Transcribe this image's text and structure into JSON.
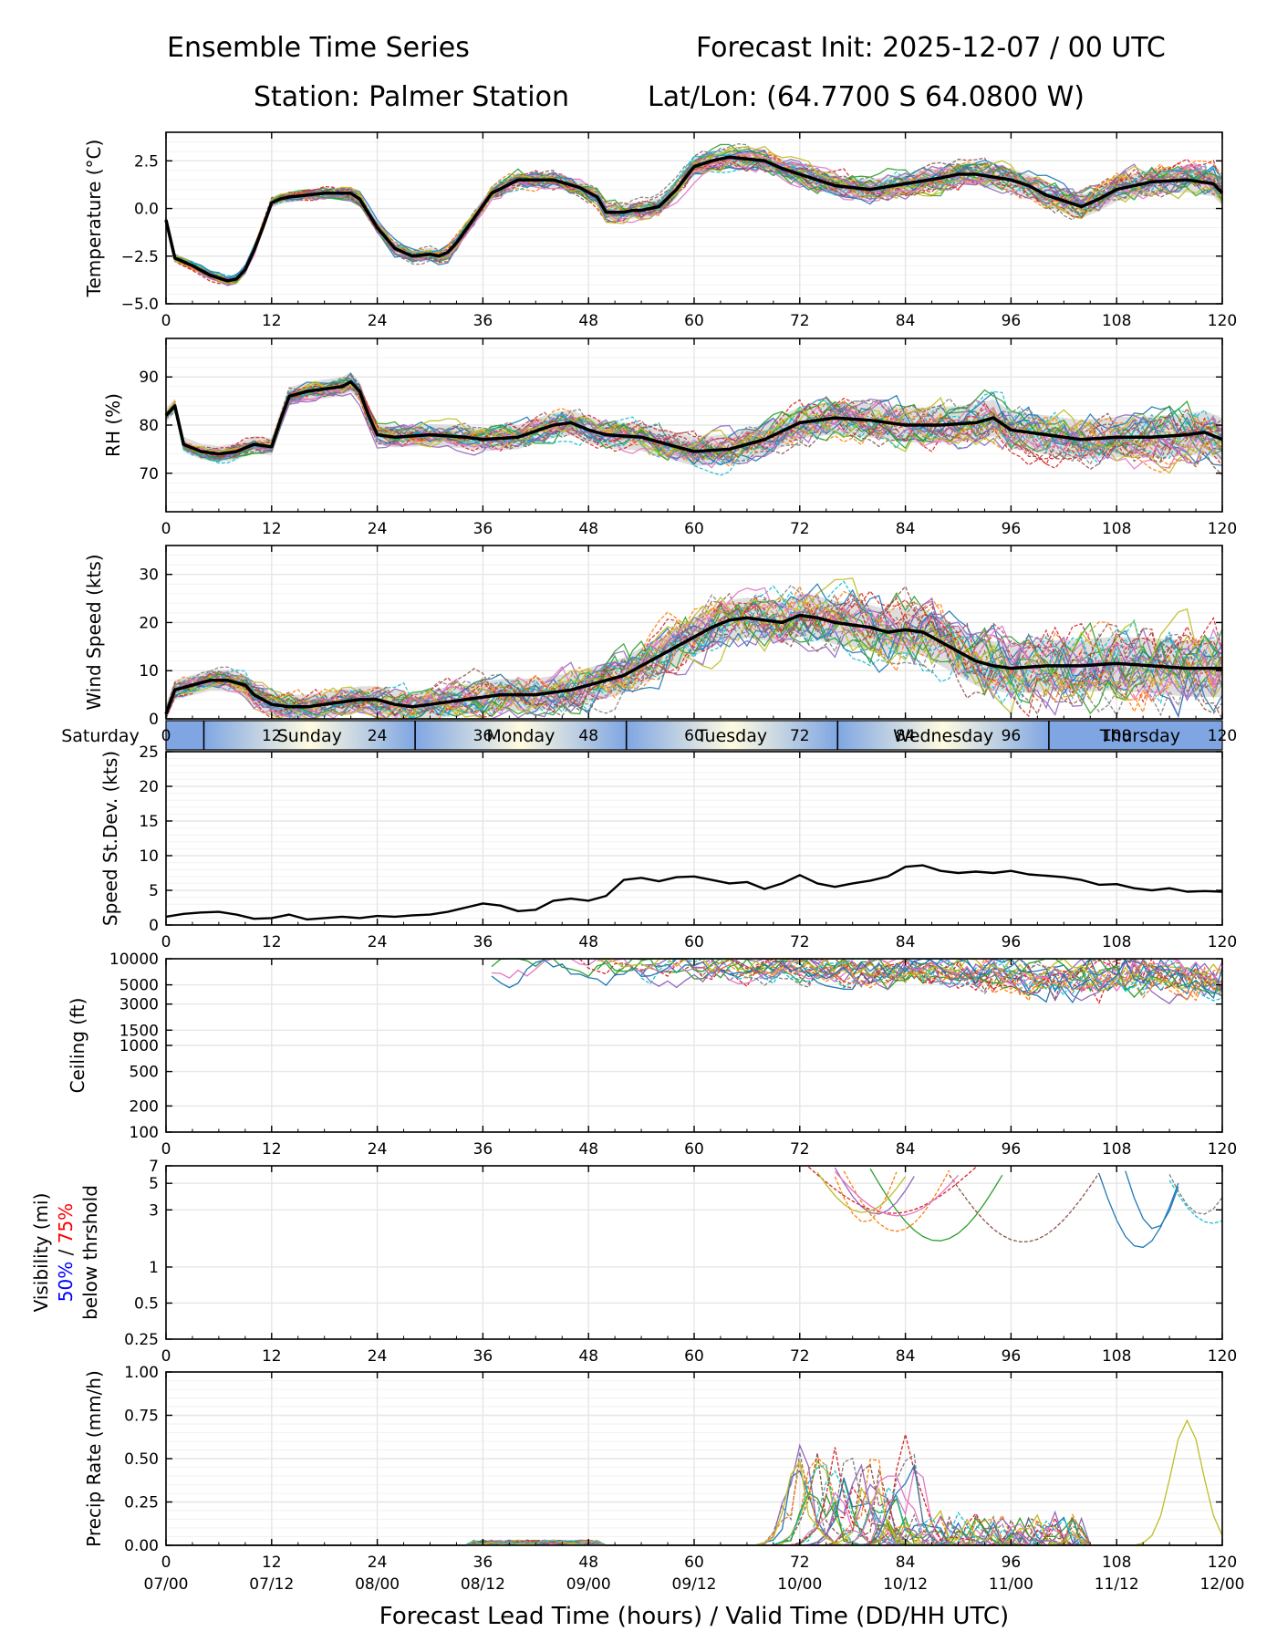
{
  "header": {
    "title_left": "Ensemble Time Series",
    "title_right": "Forecast Init: 2025-12-07 / 00 UTC",
    "station": "Station: Palmer Station",
    "latlon": "Lat/Lon: (64.7700 S 64.0800 W)"
  },
  "x_axis": {
    "xlabel": "Forecast Lead Time (hours) / Valid Time (DD/HH UTC)",
    "xlim": [
      0,
      120
    ],
    "ticks": [
      0,
      12,
      24,
      36,
      48,
      60,
      72,
      84,
      96,
      108,
      120
    ],
    "tick_labels": [
      "0",
      "12",
      "24",
      "36",
      "48",
      "60",
      "72",
      "84",
      "96",
      "108",
      "120"
    ],
    "valid_time_labels": [
      "07/00",
      "07/12",
      "08/00",
      "08/12",
      "09/00",
      "09/12",
      "10/00",
      "10/12",
      "11/00",
      "11/12",
      "12/00"
    ]
  },
  "day_band": {
    "days": [
      {
        "label": "Saturday",
        "start": 0,
        "end": 4.3
      },
      {
        "label": "Sunday",
        "start": 4.3,
        "end": 28.3
      },
      {
        "label": "Monday",
        "start": 28.3,
        "end": 52.3
      },
      {
        "label": "Tuesday",
        "start": 52.3,
        "end": 76.3
      },
      {
        "label": "Wednesday",
        "start": 76.3,
        "end": 100.3
      },
      {
        "label": "Thursday",
        "start": 100.3,
        "end": 120
      }
    ]
  },
  "colors": {
    "mean_line": "#000000",
    "spread_fill": "#d3d3d3",
    "grid": "#e6e6e6",
    "vis_50": "#0000ff",
    "vis_75": "#ff0000",
    "members": [
      "#1f77b4",
      "#ff7f0e",
      "#2ca02c",
      "#d62728",
      "#9467bd",
      "#8c564b",
      "#e377c2",
      "#7f7f7f",
      "#bcbd22",
      "#17becf"
    ]
  },
  "chart_data": [
    {
      "type": "line",
      "id": "temperature",
      "ylabel": "Temperature (°C)",
      "ylim": [
        -5,
        4
      ],
      "yticks": [
        -5.0,
        -2.5,
        0.0,
        2.5
      ],
      "ytick_labels": [
        "−5.0",
        "−2.5",
        "0.0",
        "2.5"
      ],
      "ensemble_members": 30,
      "mean": {
        "x": [
          0,
          1,
          3,
          5,
          7,
          8,
          9,
          10,
          11,
          12,
          13,
          14,
          16,
          18,
          21,
          22,
          24,
          26,
          28,
          30,
          31,
          32,
          33,
          35,
          37,
          40,
          44,
          47,
          49,
          50,
          52,
          53,
          54,
          56,
          58,
          60,
          62,
          64,
          66,
          68,
          70,
          72,
          74,
          76,
          78,
          80,
          84,
          88,
          90,
          92,
          96,
          98,
          100,
          102,
          104,
          106,
          108,
          112,
          116,
          119,
          120
        ],
        "y": [
          -0.6,
          -2.6,
          -3.0,
          -3.5,
          -3.8,
          -3.7,
          -3.2,
          -2.2,
          -1.0,
          0.3,
          0.5,
          0.6,
          0.7,
          0.8,
          0.8,
          0.5,
          -1.0,
          -2.1,
          -2.5,
          -2.4,
          -2.5,
          -2.3,
          -1.8,
          -0.5,
          0.8,
          1.5,
          1.5,
          1.1,
          0.6,
          -0.2,
          -0.2,
          -0.1,
          -0.1,
          0.1,
          1.0,
          2.2,
          2.5,
          2.7,
          2.6,
          2.5,
          2.1,
          1.8,
          1.5,
          1.2,
          1.1,
          1.0,
          1.3,
          1.6,
          1.8,
          1.8,
          1.5,
          1.2,
          0.7,
          0.4,
          0.1,
          0.5,
          1.0,
          1.4,
          1.5,
          1.3,
          0.8
        ]
      }
    },
    {
      "type": "line",
      "id": "rh",
      "ylabel": "RH (%)",
      "ylim": [
        62,
        98
      ],
      "yticks": [
        70,
        80,
        90
      ],
      "ytick_labels": [
        "70",
        "80",
        "90"
      ],
      "ensemble_members": 30,
      "mean": {
        "x": [
          0,
          1,
          2,
          4,
          6,
          8,
          10,
          12,
          13,
          14,
          16,
          18,
          20,
          21,
          22,
          23,
          24,
          26,
          30,
          34,
          36,
          40,
          44,
          46,
          48,
          50,
          54,
          58,
          60,
          64,
          68,
          72,
          76,
          80,
          84,
          88,
          92,
          94,
          96,
          100,
          104,
          108,
          112,
          116,
          118,
          120
        ],
        "y": [
          82,
          84,
          76,
          74.5,
          74,
          74.5,
          76,
          75.5,
          81,
          86,
          87,
          87.5,
          88,
          89,
          87,
          82,
          78,
          77.5,
          78,
          77.5,
          77,
          77.5,
          80,
          80.5,
          79,
          78,
          77.5,
          75.5,
          74.5,
          75,
          77,
          80.5,
          81.5,
          81,
          80,
          80,
          80.5,
          81.5,
          79,
          78,
          77,
          77.5,
          77.5,
          78,
          78.5,
          77
        ]
      }
    },
    {
      "type": "line",
      "id": "wind_speed",
      "ylabel": "Wind Speed (kts)",
      "ylim": [
        0,
        36
      ],
      "yticks": [
        0,
        10,
        20,
        30
      ],
      "ytick_labels": [
        "0",
        "10",
        "20",
        "30"
      ],
      "ensemble_members": 30,
      "mean": {
        "x": [
          0,
          1,
          3,
          5,
          7,
          9,
          10,
          12,
          14,
          16,
          18,
          20,
          22,
          24,
          26,
          28,
          30,
          34,
          38,
          42,
          46,
          48,
          50,
          52,
          54,
          56,
          58,
          60,
          62,
          64,
          66,
          68,
          70,
          72,
          74,
          76,
          78,
          80,
          82,
          84,
          86,
          88,
          90,
          92,
          94,
          96,
          100,
          104,
          108,
          112,
          116,
          120
        ],
        "y": [
          1,
          6,
          7,
          8,
          8,
          7,
          5,
          3,
          2.5,
          2.5,
          3,
          3.5,
          4,
          4,
          3,
          2.5,
          3,
          4,
          5,
          5,
          6,
          7,
          8,
          9,
          11,
          13,
          15,
          17,
          19,
          20.5,
          21,
          20.5,
          20,
          21.5,
          21,
          20,
          19.5,
          19,
          18,
          18.5,
          18,
          16,
          14,
          12,
          11,
          10.5,
          11,
          11,
          11.5,
          11,
          10.5,
          10.5
        ]
      }
    },
    {
      "type": "line",
      "id": "speed_stdev",
      "ylabel": "Speed St.Dev. (kts)",
      "ylim": [
        0,
        25
      ],
      "yticks": [
        0,
        5,
        10,
        15,
        20,
        25
      ],
      "ytick_labels": [
        "0",
        "5",
        "10",
        "15",
        "20",
        "25"
      ],
      "line": {
        "x": [
          0,
          2,
          4,
          6,
          8,
          10,
          12,
          14,
          16,
          18,
          20,
          22,
          24,
          26,
          28,
          30,
          32,
          34,
          36,
          38,
          40,
          42,
          44,
          46,
          48,
          50,
          52,
          54,
          56,
          58,
          60,
          62,
          64,
          66,
          68,
          70,
          72,
          74,
          76,
          78,
          80,
          82,
          84,
          86,
          88,
          90,
          92,
          94,
          96,
          98,
          100,
          102,
          104,
          106,
          108,
          110,
          112,
          114,
          116,
          118,
          120
        ],
        "y": [
          1.2,
          1.6,
          1.8,
          1.9,
          1.5,
          0.9,
          1.0,
          1.5,
          0.8,
          1.0,
          1.2,
          1.0,
          1.3,
          1.2,
          1.4,
          1.5,
          1.9,
          2.5,
          3.1,
          2.8,
          2.0,
          2.2,
          3.5,
          3.8,
          3.5,
          4.2,
          6.5,
          6.8,
          6.3,
          6.9,
          7.0,
          6.5,
          6.0,
          6.2,
          5.2,
          6.0,
          7.2,
          6.0,
          5.5,
          6.0,
          6.4,
          7.0,
          8.4,
          8.6,
          7.8,
          7.5,
          7.7,
          7.5,
          7.8,
          7.3,
          7.1,
          6.9,
          6.5,
          5.8,
          5.9,
          5.3,
          5.0,
          5.3,
          4.8,
          4.9,
          4.8
        ]
      }
    },
    {
      "type": "line",
      "id": "ceiling",
      "ylabel": "Ceiling (ft)",
      "ylim": [
        100,
        10000
      ],
      "yscale": "log",
      "yticks": [
        100,
        200,
        500,
        1000,
        1500,
        3000,
        5000,
        10000
      ],
      "ytick_labels": [
        "100",
        "200",
        "500",
        "1000",
        "1500",
        "3000",
        "5000",
        "10000"
      ],
      "ensemble_members": 22
    },
    {
      "type": "line",
      "id": "visibility",
      "ylabel": "Visibility (mi)",
      "ylabel_sub": "below thrshold",
      "ylabel_50": "50%",
      "ylabel_sep": " / ",
      "ylabel_75": "75%",
      "ylim": [
        0.25,
        7
      ],
      "yscale": "log",
      "yticks": [
        0.25,
        0.5,
        1,
        3,
        5,
        7
      ],
      "ytick_labels": [
        "0.25",
        "0.5",
        "1",
        "3",
        "5",
        "7"
      ],
      "ensemble_members": 12
    },
    {
      "type": "line",
      "id": "precip_rate",
      "ylabel": "Precip Rate (mm/h)",
      "ylim": [
        0,
        1
      ],
      "yticks": [
        0,
        0.25,
        0.5,
        0.75,
        1.0
      ],
      "ytick_labels": [
        "0.00",
        "0.25",
        "0.50",
        "0.75",
        "1.00"
      ],
      "ensemble_members": 30
    }
  ]
}
